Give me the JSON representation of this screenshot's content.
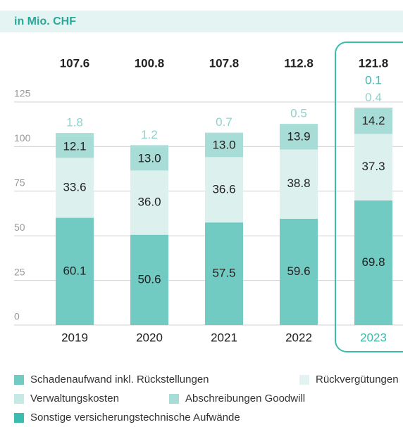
{
  "chart_data": {
    "type": "stacked_bar",
    "title": "in Mio. CHF",
    "categories": [
      "2019",
      "2020",
      "2021",
      "2022",
      "2023"
    ],
    "totals": [
      107.6,
      100.8,
      107.8,
      112.8,
      121.8
    ],
    "highlight": "2023",
    "series": [
      {
        "name": "Schadenaufwand inkl. Rückstellungen",
        "color": "#72cbc3",
        "values": [
          60.1,
          50.6,
          57.5,
          59.6,
          69.8
        ]
      },
      {
        "name": "Verwaltungskosten",
        "color": "#dcf1ee",
        "values": [
          33.6,
          36.0,
          36.6,
          38.8,
          37.3
        ],
        "value_labels": [
          "33.6",
          "36.0",
          "36.6",
          "38.8",
          "37.3"
        ]
      },
      {
        "name": "Abschreibungen Goodwill",
        "color": "#a8ddd7",
        "values": [
          12.1,
          13.0,
          13.0,
          13.9,
          14.2
        ],
        "value_labels": [
          "12.1",
          "13.0",
          "13.0",
          "13.9",
          "14.2"
        ]
      },
      {
        "name": "Rückvergütungen",
        "color": "#a9ddd8",
        "values": [
          1.8,
          1.2,
          0.7,
          0.5,
          0.4
        ]
      },
      {
        "name": "Sonstige versicherungstechnische Aufwände",
        "color": "#3bbcae",
        "values": [
          null,
          null,
          null,
          null,
          0.1
        ]
      }
    ],
    "ylim": [
      0,
      125
    ],
    "yticks": [
      0,
      25,
      50,
      75,
      100,
      125
    ],
    "grid": true
  }
}
